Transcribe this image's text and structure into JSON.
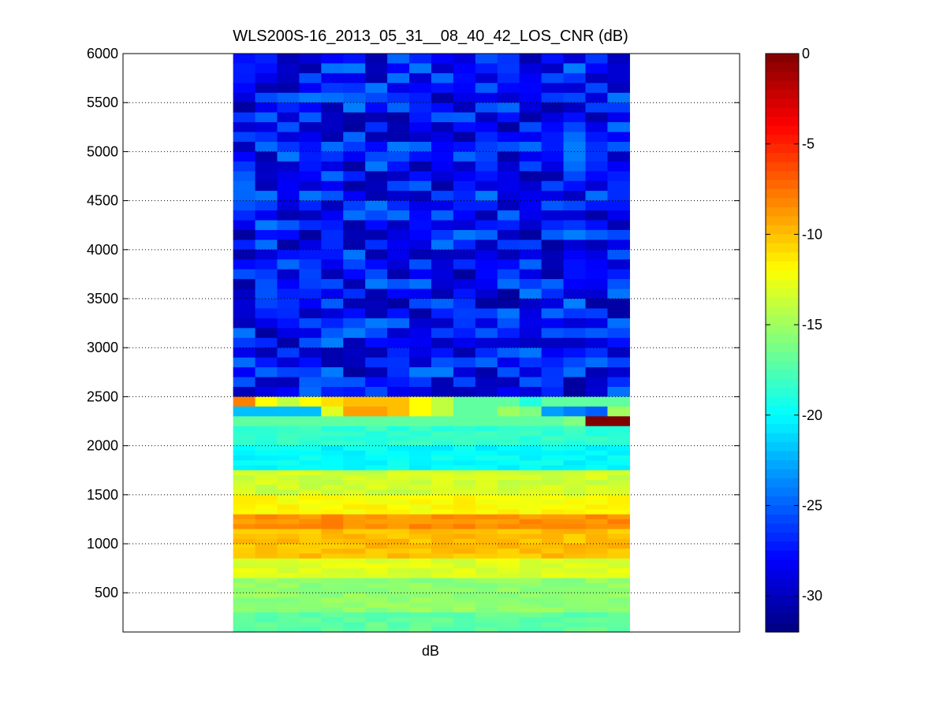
{
  "chart_data": {
    "type": "heatmap",
    "title": "WLS200S-16_2013_05_31__08_40_42_LOS_CNR (dB)",
    "xlabel": "dB",
    "ylabel": "",
    "ylim": [
      100,
      6000
    ],
    "yticks": [
      500,
      1000,
      1500,
      2000,
      2500,
      3000,
      3500,
      4000,
      4500,
      5000,
      5500,
      6000
    ],
    "ygrid": true,
    "colormap": "jet",
    "colorbar": {
      "range": [
        -32,
        0
      ],
      "ticks": [
        0,
        -5,
        -10,
        -15,
        -20,
        -25,
        -30
      ],
      "placement": "right"
    },
    "data_columns": 18,
    "data_column_start": 5,
    "total_columns": 28,
    "rows_top": [
      {
        "y_from": 2500,
        "y_to": 6000,
        "value": -27.5,
        "note_range": [
          -31,
          -24
        ]
      },
      {
        "y_from": 2400,
        "y_to": 2500,
        "values": [
          -8,
          -12,
          -14,
          -12,
          -11,
          -10,
          -10,
          -10,
          -12,
          -14,
          -17,
          -17,
          -17,
          -19,
          -17,
          -17,
          -17,
          -17
        ]
      },
      {
        "y_from": 2300,
        "y_to": 2400,
        "values": [
          -22,
          -22,
          -22,
          -22,
          -13,
          -9,
          -9,
          -10,
          -12,
          -14,
          -17,
          -17,
          -15,
          -16,
          -23,
          -24,
          -25,
          -15
        ]
      },
      {
        "y_from": 2200,
        "y_to": 2300,
        "values": [
          -17,
          -17,
          -17,
          -17,
          -17,
          -17,
          -17,
          -17,
          -17,
          -17,
          -17,
          -17,
          -17,
          -17,
          -17,
          -16,
          0,
          0
        ]
      }
    ],
    "bands": [
      {
        "y_from": 2000,
        "y_to": 2200,
        "value": -18.5
      },
      {
        "y_from": 1750,
        "y_to": 2000,
        "value": -20
      },
      {
        "y_from": 1500,
        "y_to": 1750,
        "value": -13.5
      },
      {
        "y_from": 1300,
        "y_to": 1500,
        "value": -12
      },
      {
        "y_from": 1150,
        "y_to": 1300,
        "value": -8.5
      },
      {
        "y_from": 850,
        "y_to": 1150,
        "value": -10
      },
      {
        "y_from": 650,
        "y_to": 850,
        "value": -13
      },
      {
        "y_from": 300,
        "y_to": 650,
        "value": -15.5
      },
      {
        "y_from": 100,
        "y_to": 300,
        "value": -17
      }
    ]
  }
}
